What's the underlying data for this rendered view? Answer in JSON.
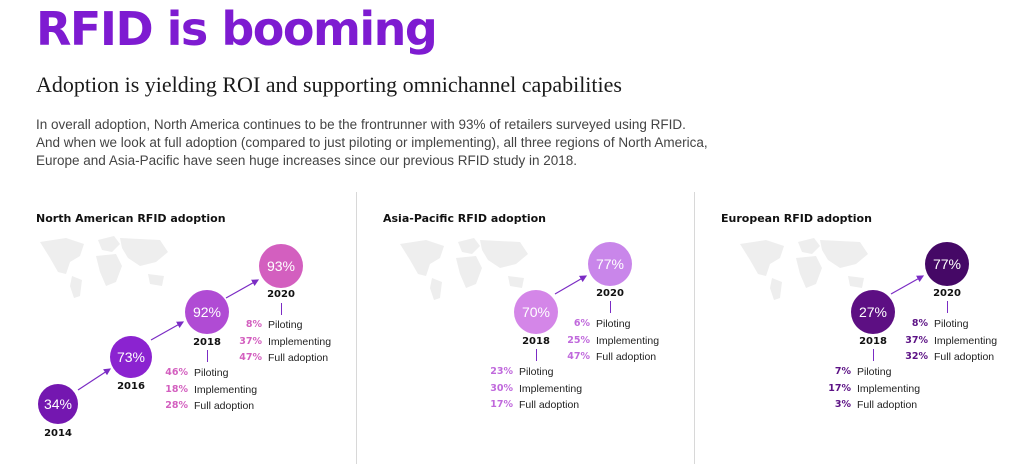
{
  "headline": "RFID is booming",
  "subtitle": "Adoption is yielding ROI and supporting omnichannel capabilities",
  "intro_lines": [
    "In overall adoption, North America continues to be the frontrunner with 93% of retailers surveyed using RFID.",
    "And when we look at full adoption (compared to just piloting or implementing), all three regions of North America,",
    "Europe and Asia-Pacific have seen huge increases since our previous RFID study in 2018."
  ],
  "colors": {
    "headline": "#7e1bd1",
    "na_2014": "#7417b0",
    "na_2016": "#8b23d0",
    "na_2018": "#b04bd4",
    "na_2020": "#d35fbf",
    "na_pct": "#d35fbf",
    "ap_2018": "#d486e8",
    "ap_2020": "#c986ea",
    "ap_pct": "#c069dc",
    "eu_2018": "#5d0f83",
    "eu_2020": "#450866",
    "eu_pct": "#5c1285",
    "map": "#eeeeee",
    "arrow": "#7b2cc4"
  },
  "panels": {
    "na": {
      "title": "North American RFID adoption",
      "points": [
        {
          "value": "34%",
          "year": "2014"
        },
        {
          "value": "73%",
          "year": "2016"
        },
        {
          "value": "92%",
          "year": "2018"
        },
        {
          "value": "93%",
          "year": "2020"
        }
      ],
      "stats_2018": [
        {
          "pct": "46%",
          "label": "Piloting"
        },
        {
          "pct": "18%",
          "label": "Implementing"
        },
        {
          "pct": "28%",
          "label": "Full adoption"
        }
      ],
      "stats_2020": [
        {
          "pct": "8%",
          "label": "Piloting"
        },
        {
          "pct": "37%",
          "label": "Implementing"
        },
        {
          "pct": "47%",
          "label": "Full adoption"
        }
      ]
    },
    "ap": {
      "title": "Asia-Pacific RFID adoption",
      "points": [
        {
          "value": "70%",
          "year": "2018"
        },
        {
          "value": "77%",
          "year": "2020"
        }
      ],
      "stats_2018": [
        {
          "pct": "23%",
          "label": "Piloting"
        },
        {
          "pct": "30%",
          "label": "Implementing"
        },
        {
          "pct": "17%",
          "label": "Full adoption"
        }
      ],
      "stats_2020": [
        {
          "pct": "6%",
          "label": "Piloting"
        },
        {
          "pct": "25%",
          "label": "Implementing"
        },
        {
          "pct": "47%",
          "label": "Full adoption"
        }
      ]
    },
    "eu": {
      "title": "European RFID adoption",
      "points": [
        {
          "value": "27%",
          "year": "2018"
        },
        {
          "value": "77%",
          "year": "2020"
        }
      ],
      "stats_2018": [
        {
          "pct": "7%",
          "label": "Piloting"
        },
        {
          "pct": "17%",
          "label": "Implementing"
        },
        {
          "pct": "3%",
          "label": "Full adoption"
        }
      ],
      "stats_2020": [
        {
          "pct": "8%",
          "label": "Piloting"
        },
        {
          "pct": "37%",
          "label": "Implementing"
        },
        {
          "pct": "32%",
          "label": "Full adoption"
        }
      ]
    }
  }
}
